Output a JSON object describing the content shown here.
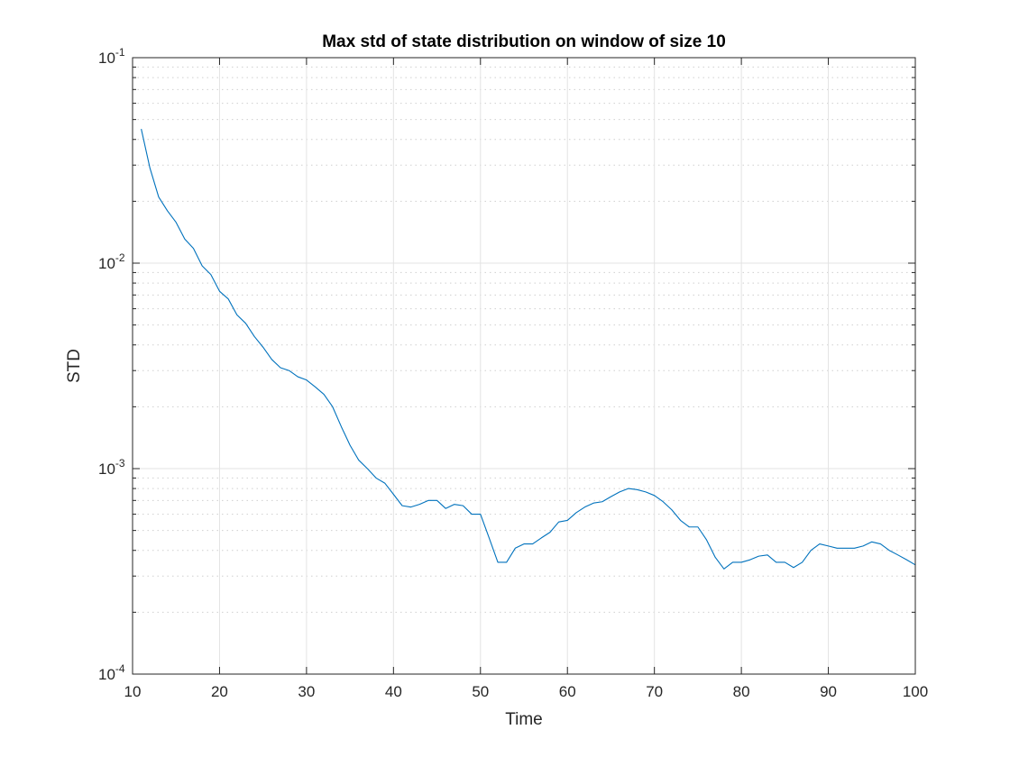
{
  "chart_data": {
    "type": "line",
    "title": "Max std of state distribution on window of size 10",
    "xlabel": "Time",
    "ylabel": "STD",
    "xlim": [
      10,
      100
    ],
    "ylim": [
      0.0001,
      0.1
    ],
    "yscale": "log",
    "grid": true,
    "minor_grid": true,
    "x_ticks": [
      "10",
      "20",
      "30",
      "40",
      "50",
      "60",
      "70",
      "80",
      "90",
      "100"
    ],
    "y_ticks": [
      {
        "base": "10",
        "exp": "-4"
      },
      {
        "base": "10",
        "exp": "-3"
      },
      {
        "base": "10",
        "exp": "-2"
      },
      {
        "base": "10",
        "exp": "-1"
      }
    ],
    "series": [
      {
        "color": "#0072BD",
        "x": [
          11,
          12,
          13,
          14,
          15,
          16,
          17,
          18,
          19,
          20,
          21,
          22,
          23,
          24,
          25,
          26,
          27,
          28,
          29,
          30,
          31,
          32,
          33,
          34,
          35,
          36,
          37,
          38,
          39,
          40,
          41,
          42,
          43,
          44,
          45,
          46,
          47,
          48,
          49,
          50,
          51,
          52,
          53,
          54,
          55,
          56,
          57,
          58,
          59,
          60,
          61,
          62,
          63,
          64,
          65,
          66,
          67,
          68,
          69,
          70,
          71,
          72,
          73,
          74,
          75,
          76,
          77,
          78,
          79,
          80,
          81,
          82,
          83,
          84,
          85,
          86,
          87,
          88,
          89,
          90,
          91,
          92,
          93,
          94,
          95,
          96,
          97,
          98,
          99,
          100
        ],
        "y": [
          0.045,
          0.029,
          0.021,
          0.018,
          0.0158,
          0.0131,
          0.0118,
          0.0097,
          0.0088,
          0.0073,
          0.0067,
          0.0056,
          0.0051,
          0.0044,
          0.0039,
          0.0034,
          0.0031,
          0.003,
          0.0028,
          0.0027,
          0.0025,
          0.0023,
          0.002,
          0.0016,
          0.0013,
          0.0011,
          0.001,
          0.0009,
          0.00085,
          0.00075,
          0.00066,
          0.00065,
          0.00067,
          0.0007,
          0.0007,
          0.00064,
          0.00067,
          0.00066,
          0.0006,
          0.0006,
          0.00046,
          0.00035,
          0.00035,
          0.00041,
          0.00043,
          0.00043,
          0.00046,
          0.00049,
          0.00055,
          0.00056,
          0.00061,
          0.00065,
          0.00068,
          0.00069,
          0.00073,
          0.00077,
          0.0008,
          0.00079,
          0.00077,
          0.00074,
          0.00069,
          0.00063,
          0.00056,
          0.00052,
          0.00052,
          0.00045,
          0.00037,
          0.000325,
          0.00035,
          0.00035,
          0.00036,
          0.000375,
          0.00038,
          0.00035,
          0.00035,
          0.00033,
          0.00035,
          0.0004,
          0.00043,
          0.00042,
          0.00041,
          0.00041,
          0.00041,
          0.00042,
          0.00044,
          0.00043,
          0.0004,
          0.00038,
          0.00036,
          0.00034
        ]
      }
    ]
  }
}
